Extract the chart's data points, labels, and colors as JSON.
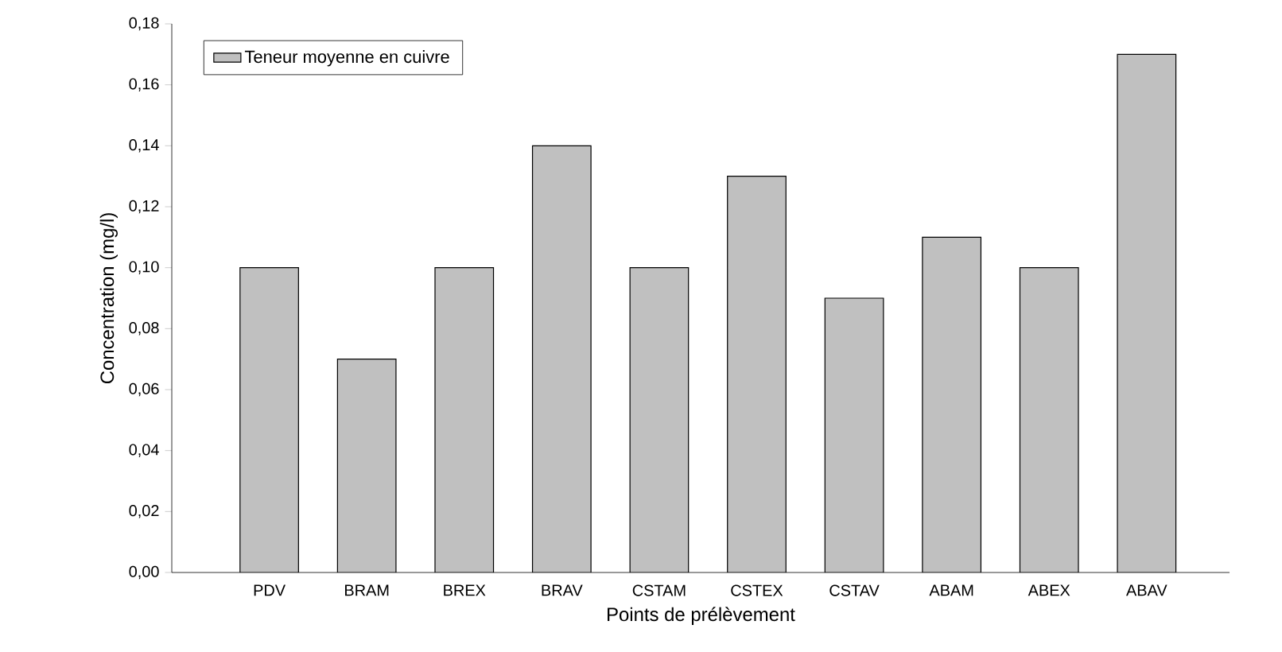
{
  "chart_data": {
    "type": "bar",
    "xlabel": "Points de prélèvement",
    "ylabel": "Concentration (mg/l)",
    "categories": [
      "PDV",
      "BRAM",
      "BREX",
      "BRAV",
      "CSTAM",
      "CSTEX",
      "CSTAV",
      "ABAM",
      "ABEX",
      "ABAV"
    ],
    "series": [
      {
        "name": "Teneur moyenne en cuivre",
        "color": "#c0c0c0",
        "values": [
          0.1,
          0.07,
          0.1,
          0.14,
          0.1,
          0.13,
          0.09,
          0.11,
          0.1,
          0.17
        ]
      }
    ],
    "ylim": [
      0,
      0.18
    ],
    "yticks": [
      {
        "value": 0,
        "label": "0,00"
      },
      {
        "value": 0.02,
        "label": "0,02"
      },
      {
        "value": 0.04,
        "label": "0,04"
      },
      {
        "value": 0.06,
        "label": "0,06"
      },
      {
        "value": 0.08,
        "label": "0,08"
      },
      {
        "value": 0.1,
        "label": "0,10"
      },
      {
        "value": 0.12,
        "label": "0,12"
      },
      {
        "value": 0.14,
        "label": "0,14"
      },
      {
        "value": 0.16,
        "label": "0,16"
      },
      {
        "value": 0.18,
        "label": "0,18"
      }
    ],
    "legend": "top left",
    "grid": false
  }
}
